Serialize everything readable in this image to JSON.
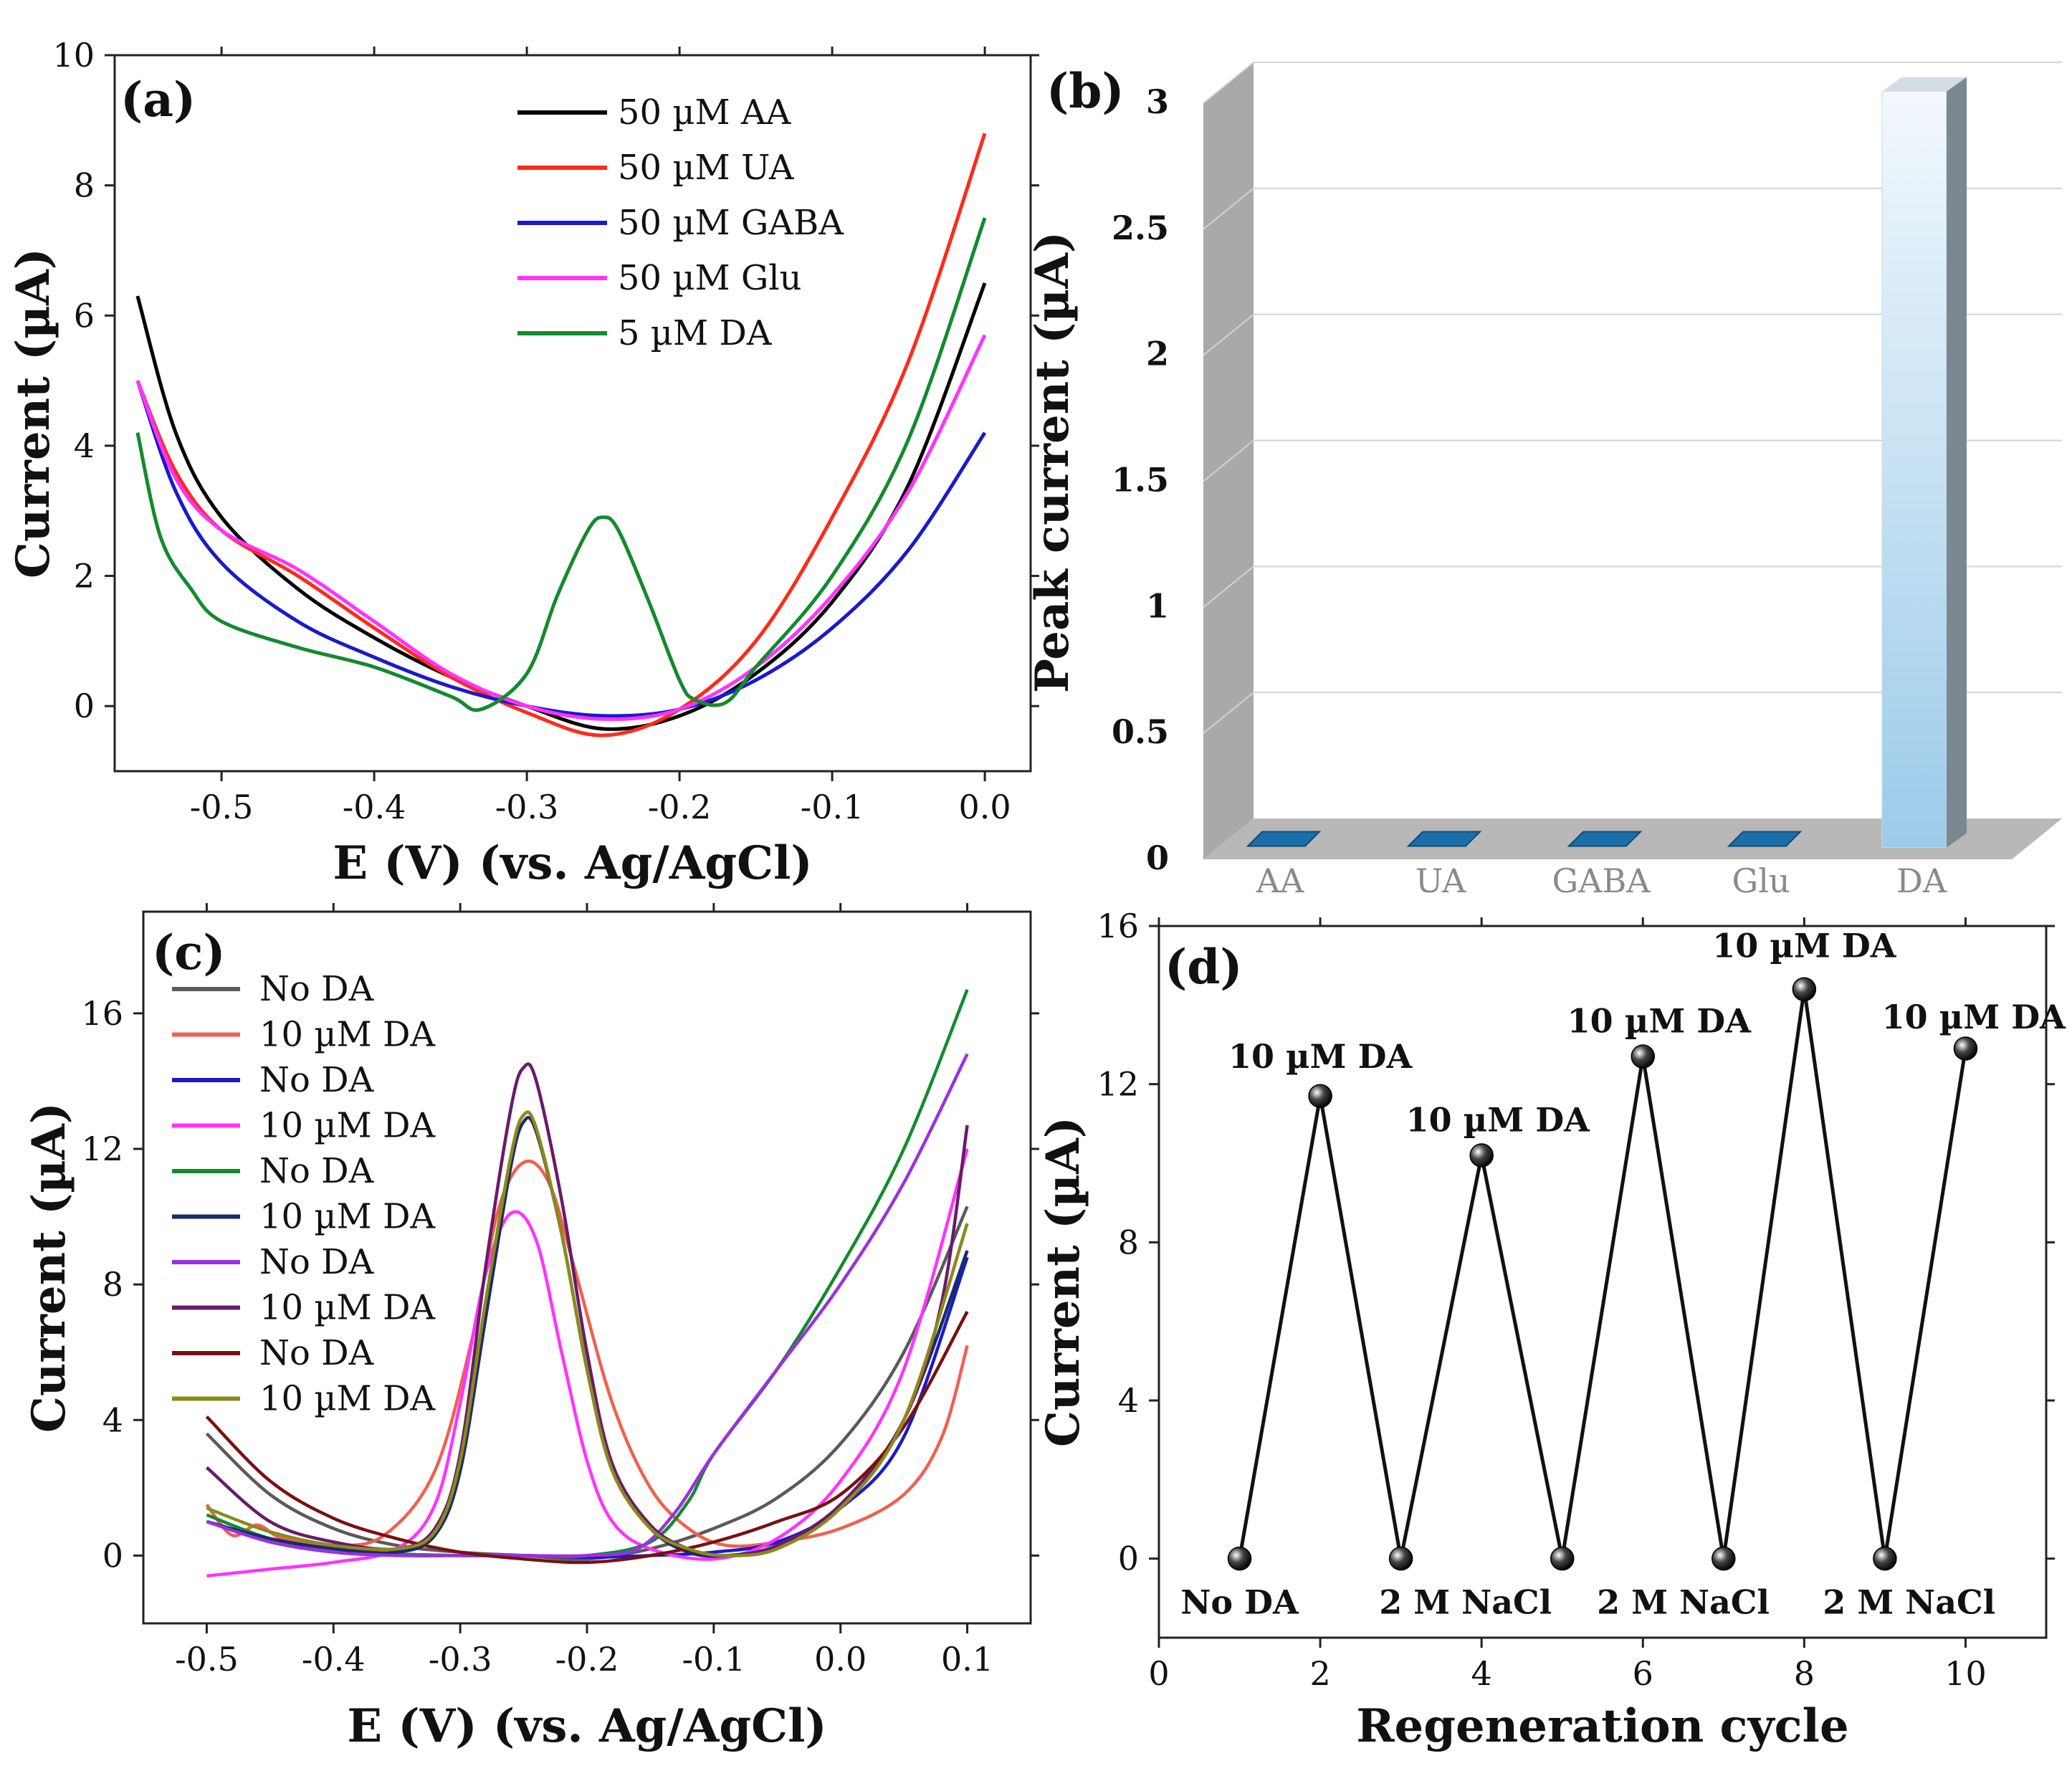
{
  "chart_data": [
    {
      "panel": "(a)",
      "type": "line",
      "xlabel": "E (V) (vs. Ag/AgCl)",
      "ylabel": "Current (µA)",
      "xlim": [
        -0.57,
        0.03
      ],
      "ylim": [
        -1,
        10
      ],
      "xticks": [
        -0.5,
        -0.4,
        -0.3,
        -0.2,
        -0.1,
        0.0
      ],
      "xtick_labels": [
        "-0.5",
        "-0.4",
        "-0.3",
        "-0.2",
        "-0.1",
        "0.0"
      ],
      "yticks": [
        0,
        2,
        4,
        6,
        8,
        10
      ],
      "ytick_labels": [
        "0",
        "2",
        "4",
        "6",
        "8",
        "10"
      ],
      "legend_position": "top-right",
      "series": [
        {
          "name": "50 µM AA",
          "color": "#000000",
          "x": [
            -0.555,
            -0.53,
            -0.5,
            -0.45,
            -0.4,
            -0.35,
            -0.3,
            -0.25,
            -0.2,
            -0.15,
            -0.1,
            -0.05,
            0.0
          ],
          "y": [
            6.3,
            4.2,
            2.9,
            1.8,
            1.05,
            0.45,
            0.0,
            -0.35,
            -0.15,
            0.5,
            1.6,
            3.4,
            6.5
          ]
        },
        {
          "name": "50 µM UA",
          "color": "#ff2a1a",
          "x": [
            -0.555,
            -0.53,
            -0.5,
            -0.45,
            -0.4,
            -0.35,
            -0.3,
            -0.25,
            -0.2,
            -0.15,
            -0.1,
            -0.05,
            0.0
          ],
          "y": [
            5.0,
            3.6,
            2.7,
            2.0,
            1.2,
            0.45,
            -0.1,
            -0.45,
            -0.05,
            1.0,
            2.9,
            5.3,
            8.8
          ]
        },
        {
          "name": "50 µM GABA",
          "color": "#1a1acc",
          "x": [
            -0.555,
            -0.53,
            -0.5,
            -0.45,
            -0.4,
            -0.35,
            -0.3,
            -0.25,
            -0.2,
            -0.15,
            -0.1,
            -0.05,
            0.0
          ],
          "y": [
            5.0,
            3.3,
            2.2,
            1.3,
            0.75,
            0.3,
            0.0,
            -0.15,
            -0.05,
            0.4,
            1.2,
            2.4,
            4.2
          ]
        },
        {
          "name": "50 µM Glu",
          "color": "#ff33ff",
          "x": [
            -0.555,
            -0.53,
            -0.5,
            -0.45,
            -0.4,
            -0.35,
            -0.3,
            -0.25,
            -0.2,
            -0.15,
            -0.1,
            -0.05,
            0.0
          ],
          "y": [
            5.0,
            3.5,
            2.7,
            2.1,
            1.3,
            0.5,
            0.0,
            -0.2,
            -0.05,
            0.6,
            1.7,
            3.3,
            5.7
          ]
        },
        {
          "name": "5 µM DA",
          "color": "#138a2e",
          "x": [
            -0.555,
            -0.54,
            -0.52,
            -0.5,
            -0.45,
            -0.4,
            -0.35,
            -0.33,
            -0.3,
            -0.28,
            -0.26,
            -0.25,
            -0.24,
            -0.22,
            -0.2,
            -0.19,
            -0.17,
            -0.15,
            -0.1,
            -0.05,
            0.0
          ],
          "y": [
            4.2,
            2.6,
            1.8,
            1.3,
            0.9,
            0.6,
            0.15,
            -0.05,
            0.5,
            1.7,
            2.7,
            2.9,
            2.7,
            1.6,
            0.4,
            0.1,
            0.05,
            0.6,
            2.0,
            4.1,
            7.5
          ]
        }
      ]
    },
    {
      "panel": "(b)",
      "type": "bar",
      "ylabel": "Peak current (µA)",
      "categories": [
        "AA",
        "UA",
        "GABA",
        "Glu",
        "DA"
      ],
      "values": [
        0.0,
        0.0,
        0.0,
        0.0,
        3.0
      ],
      "ylim": [
        0,
        3
      ],
      "yticks": [
        0,
        0.5,
        1,
        1.5,
        2,
        2.5,
        3
      ],
      "ytick_labels": [
        "0",
        "0.5",
        "1",
        "1.5",
        "2",
        "2.5",
        "3"
      ],
      "style": "3d"
    },
    {
      "panel": "(c)",
      "type": "line",
      "xlabel": "E (V) (vs. Ag/AgCl)",
      "ylabel": "Current (µA)",
      "xlim": [
        -0.55,
        0.15
      ],
      "ylim": [
        -2,
        19
      ],
      "xticks": [
        -0.5,
        -0.4,
        -0.3,
        -0.2,
        -0.1,
        0.0,
        0.1
      ],
      "xtick_labels": [
        "-0.5",
        "-0.4",
        "-0.3",
        "-0.2",
        "-0.1",
        "0.0",
        "0.1"
      ],
      "yticks": [
        0,
        4,
        8,
        12,
        16
      ],
      "ytick_labels": [
        "0",
        "4",
        "8",
        "12",
        "16"
      ],
      "legend_position": "top-left",
      "series": [
        {
          "name": "No DA",
          "color": "#5a5a5a",
          "x": [
            -0.5,
            -0.45,
            -0.4,
            -0.35,
            -0.3,
            -0.25,
            -0.2,
            -0.15,
            -0.1,
            -0.05,
            0.0,
            0.05,
            0.1
          ],
          "y": [
            3.6,
            1.8,
            0.8,
            0.3,
            0.1,
            0.0,
            -0.1,
            0.2,
            0.8,
            1.7,
            3.3,
            6.0,
            10.3
          ]
        },
        {
          "name": "10 µM DA",
          "color": "#f06050",
          "x": [
            -0.5,
            -0.48,
            -0.46,
            -0.44,
            -0.4,
            -0.36,
            -0.32,
            -0.29,
            -0.27,
            -0.25,
            -0.23,
            -0.21,
            -0.18,
            -0.15,
            -0.12,
            -0.09,
            -0.05,
            0.0,
            0.05,
            0.08,
            0.1
          ],
          "y": [
            1.5,
            0.6,
            0.9,
            0.5,
            0.3,
            0.6,
            2.5,
            6.5,
            10.2,
            11.6,
            11.0,
            8.5,
            4.5,
            2.0,
            0.8,
            0.3,
            0.4,
            0.8,
            1.8,
            3.5,
            6.2
          ]
        },
        {
          "name": "No DA",
          "color": "#1a1acc",
          "x": [
            -0.5,
            -0.45,
            -0.4,
            -0.35,
            -0.3,
            -0.25,
            -0.2,
            -0.15,
            -0.1,
            -0.05,
            0.0,
            0.05,
            0.1
          ],
          "y": [
            1.0,
            0.5,
            0.2,
            0.05,
            0.0,
            0.0,
            -0.05,
            0.0,
            0.1,
            0.4,
            1.4,
            3.5,
            8.8
          ]
        },
        {
          "name": "10 µM DA",
          "color": "#ff33ff",
          "x": [
            -0.5,
            -0.45,
            -0.4,
            -0.35,
            -0.32,
            -0.3,
            -0.28,
            -0.26,
            -0.24,
            -0.22,
            -0.2,
            -0.18,
            -0.15,
            -0.1,
            -0.05,
            0.0,
            0.05,
            0.1
          ],
          "y": [
            -0.6,
            -0.4,
            -0.2,
            0.2,
            1.5,
            4.5,
            8.3,
            10.1,
            9.3,
            6.0,
            2.8,
            1.0,
            0.2,
            -0.1,
            0.5,
            2.2,
            5.5,
            12.0
          ]
        },
        {
          "name": "No DA",
          "color": "#138a2e",
          "x": [
            -0.5,
            -0.45,
            -0.4,
            -0.35,
            -0.3,
            -0.25,
            -0.2,
            -0.15,
            -0.12,
            -0.1,
            -0.05,
            0.0,
            0.05,
            0.1
          ],
          "y": [
            1.2,
            0.5,
            0.2,
            0.05,
            0.0,
            0.0,
            0.0,
            0.4,
            1.6,
            3.0,
            5.5,
            8.5,
            12.0,
            16.7
          ]
        },
        {
          "name": "10 µM DA",
          "color": "#1a2a6c",
          "x": [
            -0.5,
            -0.45,
            -0.4,
            -0.35,
            -0.32,
            -0.3,
            -0.28,
            -0.26,
            -0.25,
            -0.24,
            -0.22,
            -0.2,
            -0.18,
            -0.15,
            -0.12,
            -0.09,
            -0.05,
            0.0,
            0.05,
            0.1
          ],
          "y": [
            1.0,
            0.5,
            0.2,
            0.1,
            0.6,
            2.5,
            7.0,
            11.5,
            12.8,
            12.5,
            9.5,
            5.5,
            2.5,
            0.8,
            0.1,
            0.0,
            0.3,
            1.5,
            4.0,
            9.0
          ]
        },
        {
          "name": "No DA",
          "color": "#9b30e0",
          "x": [
            -0.5,
            -0.45,
            -0.4,
            -0.35,
            -0.3,
            -0.25,
            -0.2,
            -0.16,
            -0.13,
            -0.1,
            -0.05,
            0.0,
            0.05,
            0.1
          ],
          "y": [
            1.0,
            0.4,
            0.1,
            0.0,
            0.0,
            0.0,
            0.0,
            0.2,
            1.3,
            3.0,
            5.5,
            8.0,
            11.0,
            14.8
          ]
        },
        {
          "name": "10 µM DA",
          "color": "#6a1a6a",
          "x": [
            -0.5,
            -0.45,
            -0.4,
            -0.35,
            -0.32,
            -0.3,
            -0.28,
            -0.26,
            -0.25,
            -0.24,
            -0.22,
            -0.2,
            -0.18,
            -0.15,
            -0.12,
            -0.09,
            -0.05,
            0.0,
            0.05,
            0.08,
            0.1
          ],
          "y": [
            2.6,
            1.0,
            0.4,
            0.2,
            0.8,
            3.0,
            8.5,
            13.2,
            14.4,
            14.0,
            10.5,
            6.0,
            2.7,
            0.9,
            0.2,
            0.0,
            0.3,
            1.5,
            4.0,
            7.5,
            12.7
          ]
        },
        {
          "name": "No DA",
          "color": "#7a1010",
          "x": [
            -0.5,
            -0.45,
            -0.4,
            -0.35,
            -0.3,
            -0.25,
            -0.2,
            -0.15,
            -0.1,
            -0.05,
            0.0,
            0.05,
            0.1
          ],
          "y": [
            4.1,
            2.2,
            1.1,
            0.5,
            0.1,
            -0.1,
            -0.2,
            0.0,
            0.4,
            1.0,
            1.8,
            3.8,
            7.2
          ]
        },
        {
          "name": "10 µM DA",
          "color": "#8a8a1a",
          "x": [
            -0.5,
            -0.45,
            -0.4,
            -0.35,
            -0.32,
            -0.3,
            -0.28,
            -0.26,
            -0.25,
            -0.24,
            -0.22,
            -0.2,
            -0.18,
            -0.15,
            -0.12,
            -0.09,
            -0.05,
            0.0,
            0.05,
            0.1
          ],
          "y": [
            1.4,
            0.7,
            0.3,
            0.2,
            0.7,
            2.8,
            7.5,
            11.8,
            13.0,
            12.6,
            9.5,
            5.5,
            2.5,
            0.8,
            0.2,
            0.0,
            0.2,
            1.4,
            4.0,
            9.8
          ]
        }
      ]
    },
    {
      "panel": "(d)",
      "type": "scatter",
      "xlabel": "Regeneration cycle",
      "ylabel": "Current (µA)",
      "xlim": [
        0,
        11
      ],
      "ylim": [
        -2,
        16
      ],
      "xticks": [
        0,
        2,
        4,
        6,
        8,
        10
      ],
      "xtick_labels": [
        "0",
        "2",
        "4",
        "6",
        "8",
        "10"
      ],
      "yticks": [
        0,
        4,
        8,
        12,
        16
      ],
      "ytick_labels": [
        "0",
        "4",
        "8",
        "12",
        "16"
      ],
      "x": [
        1,
        2,
        3,
        4,
        5,
        6,
        7,
        8,
        9,
        10
      ],
      "y": [
        0.0,
        11.7,
        0.0,
        10.2,
        0.0,
        12.7,
        0.0,
        14.4,
        0.0,
        12.9
      ],
      "annotations": [
        {
          "text": "No DA",
          "x": 1,
          "y": -1.1
        },
        {
          "text": "10 µM DA",
          "x": 2,
          "y": 12.7
        },
        {
          "text": "2 M NaCl",
          "x": 3.8,
          "y": -1.1
        },
        {
          "text": "10 µM DA",
          "x": 4.2,
          "y": 11.1
        },
        {
          "text": "2 M NaCl",
          "x": 6.5,
          "y": -1.1
        },
        {
          "text": "10 µM DA",
          "x": 6.2,
          "y": 13.6
        },
        {
          "text": "10 µM DA",
          "x": 8,
          "y": 15.5
        },
        {
          "text": "2 M NaCl",
          "x": 9.3,
          "y": -1.1
        },
        {
          "text": "10 µM DA",
          "x": 10.1,
          "y": 13.7
        }
      ]
    }
  ]
}
